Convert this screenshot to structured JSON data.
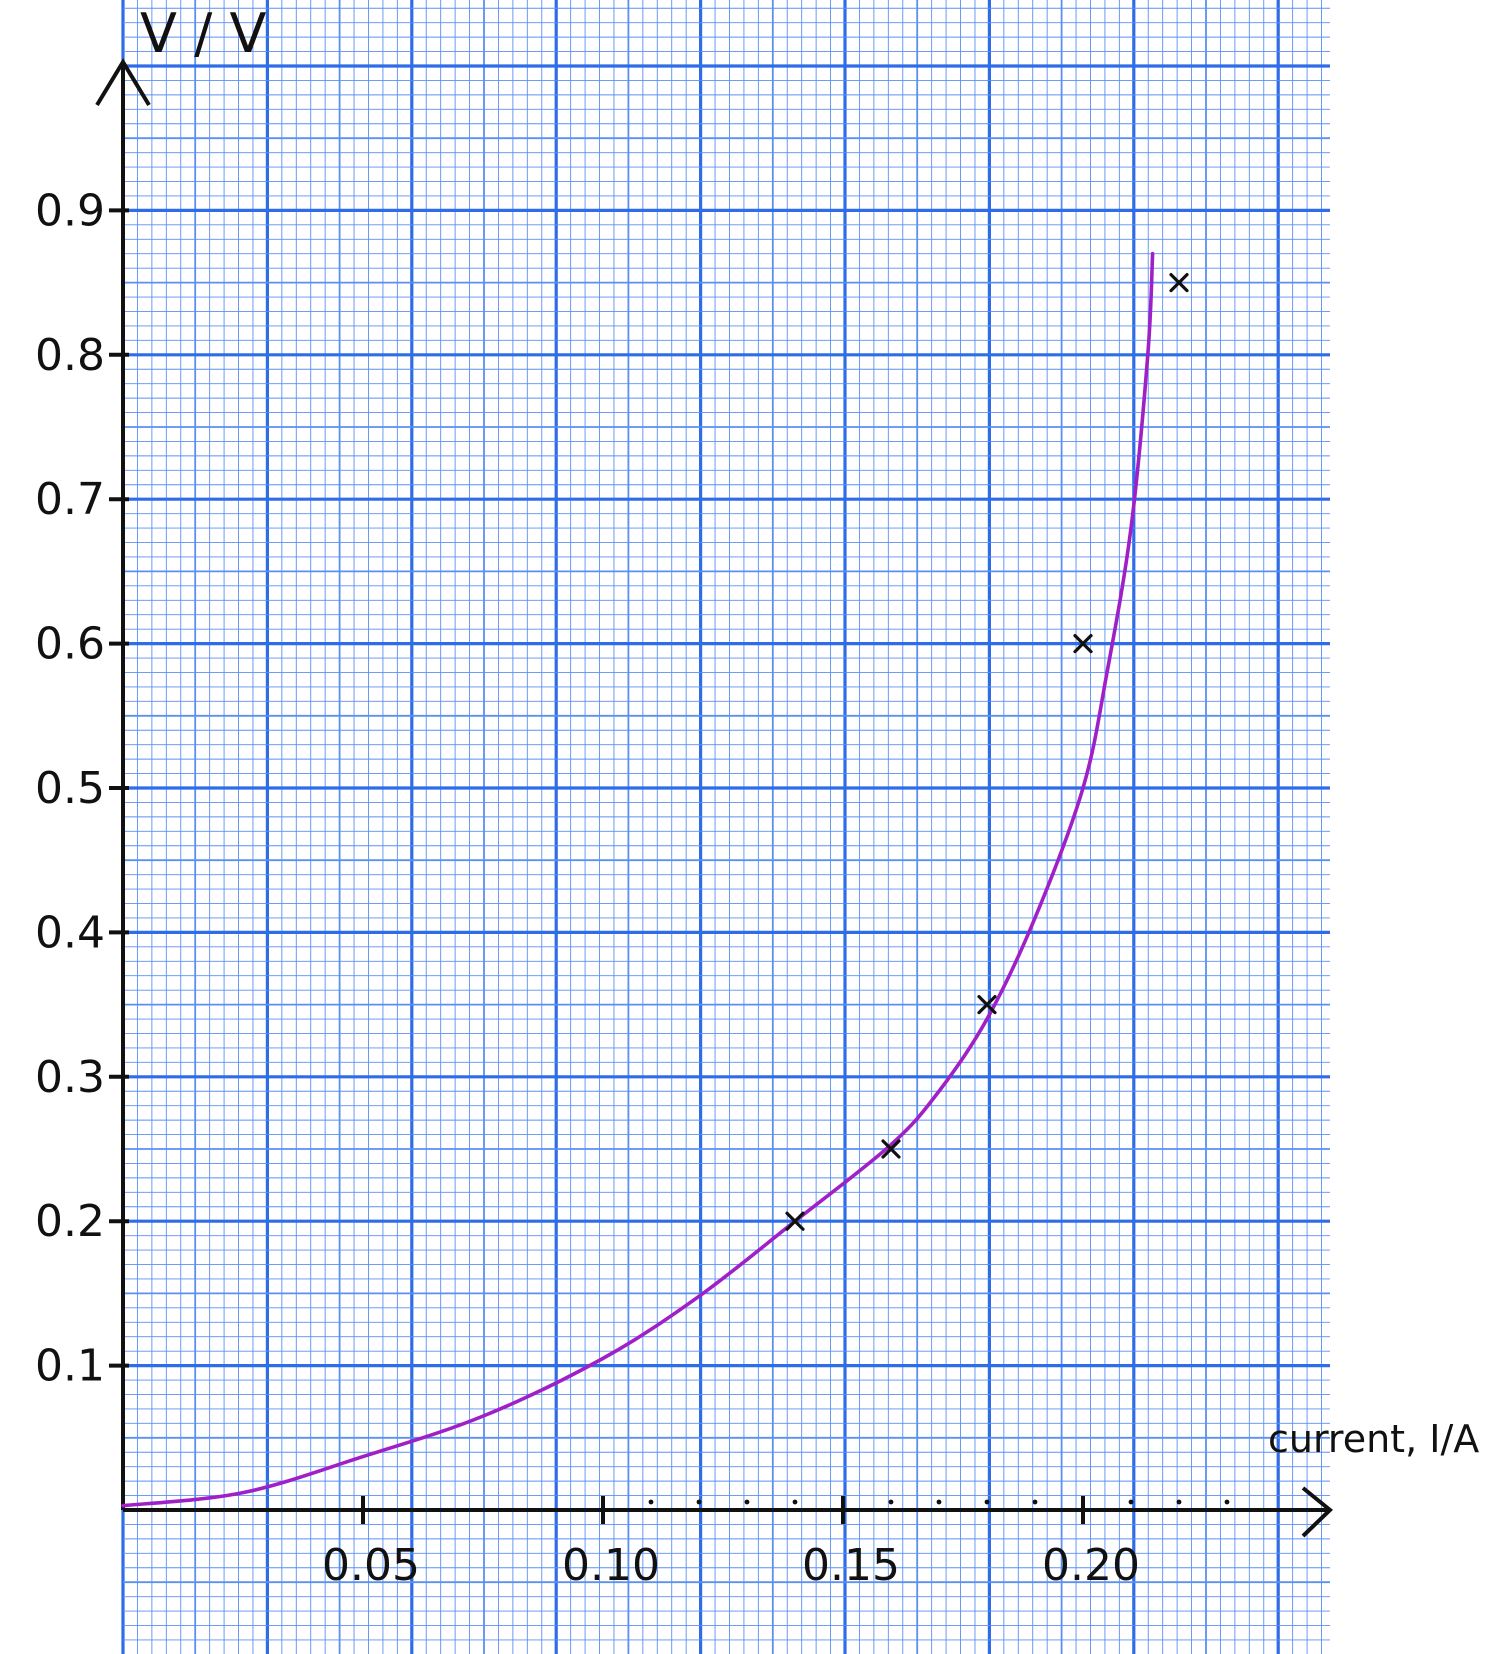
{
  "colors": {
    "background": "#ffffff",
    "grid_fine": "#5b8ff2",
    "grid_major": "#2f6de8",
    "axis": "#111111",
    "curve": "#a020c8",
    "marker": "#111111"
  },
  "chart_data": {
    "type": "line",
    "xlabel": "current, I/A",
    "ylabel": "V / V",
    "xlim": [
      0,
      0.25
    ],
    "ylim": [
      0,
      1.0
    ],
    "x_ticks": [
      {
        "value": 0.05,
        "label": "0.05"
      },
      {
        "value": 0.1,
        "label": "0.10"
      },
      {
        "value": 0.15,
        "label": "0.15"
      },
      {
        "value": 0.2,
        "label": "0.20"
      }
    ],
    "y_ticks": [
      {
        "value": 0.1,
        "label": "0.1"
      },
      {
        "value": 0.2,
        "label": "0.2"
      },
      {
        "value": 0.3,
        "label": "0.3"
      },
      {
        "value": 0.4,
        "label": "0.4"
      },
      {
        "value": 0.5,
        "label": "0.5"
      },
      {
        "value": 0.6,
        "label": "0.6"
      },
      {
        "value": 0.7,
        "label": "0.7"
      },
      {
        "value": 0.8,
        "label": "0.8"
      },
      {
        "value": 0.9,
        "label": "0.9"
      }
    ],
    "grid": true,
    "points": {
      "x": [
        0.14,
        0.16,
        0.18,
        0.2,
        0.22
      ],
      "y": [
        0.2,
        0.25,
        0.35,
        0.6,
        0.85
      ]
    },
    "curve": {
      "x": [
        0.0,
        0.025,
        0.05,
        0.075,
        0.1,
        0.12,
        0.14,
        0.16,
        0.17,
        0.18,
        0.19,
        0.2,
        0.205,
        0.21,
        0.2135,
        0.2145
      ],
      "y": [
        0.003,
        0.012,
        0.037,
        0.065,
        0.105,
        0.148,
        0.2,
        0.253,
        0.29,
        0.34,
        0.41,
        0.5,
        0.58,
        0.68,
        0.8,
        0.87
      ]
    }
  }
}
